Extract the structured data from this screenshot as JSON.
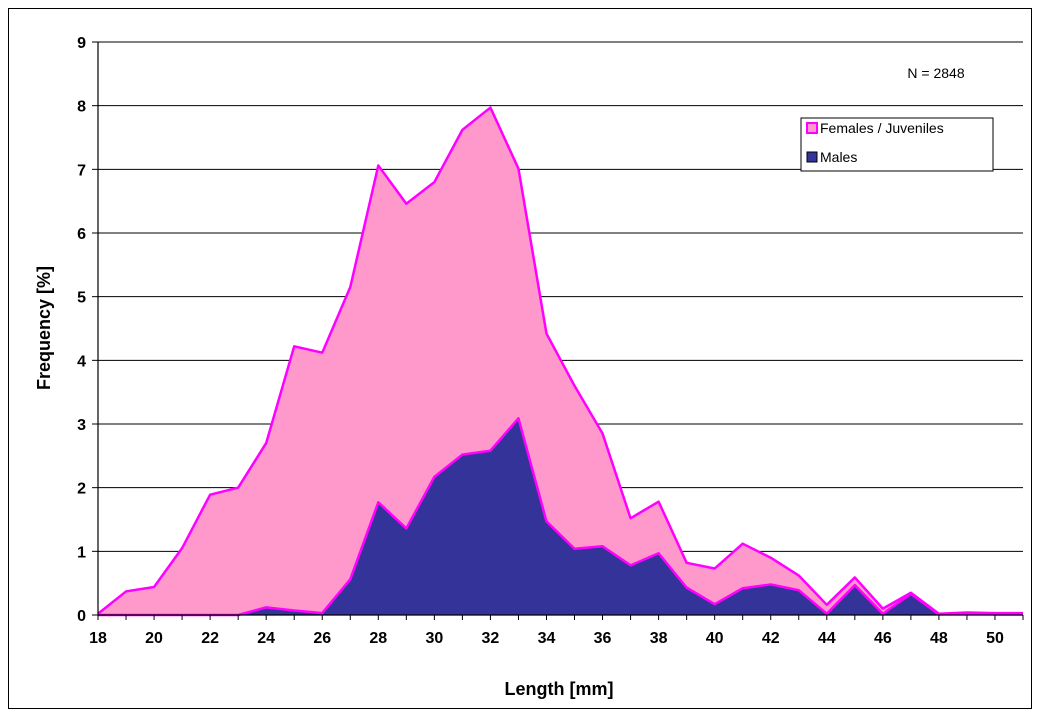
{
  "chart_data": {
    "type": "area",
    "stacked": false,
    "title": "",
    "xlabel": "Length [mm]",
    "ylabel": "Frequency [%]",
    "xlim": [
      18,
      51
    ],
    "ylim": [
      0,
      9
    ],
    "x_ticks": [
      18,
      20,
      22,
      24,
      26,
      28,
      30,
      32,
      34,
      36,
      38,
      40,
      42,
      44,
      46,
      48,
      50
    ],
    "y_ticks": [
      0,
      1,
      2,
      3,
      4,
      5,
      6,
      7,
      8,
      9
    ],
    "grid": "horizontal",
    "legend_position": "top-right",
    "annotation": "N = 2848",
    "x": [
      18,
      19,
      20,
      21,
      22,
      23,
      24,
      25,
      26,
      27,
      28,
      29,
      30,
      31,
      32,
      33,
      34,
      35,
      36,
      37,
      38,
      39,
      40,
      41,
      42,
      43,
      44,
      45,
      46,
      47,
      48,
      49,
      50,
      51
    ],
    "series": [
      {
        "name": "Females / Juveniles",
        "fill": "#ff99cc",
        "stroke": "#ff00ff",
        "values": [
          0.02,
          0.37,
          0.44,
          1.05,
          1.89,
          2.0,
          2.7,
          4.22,
          4.12,
          5.15,
          7.06,
          6.46,
          6.8,
          7.62,
          7.97,
          7.01,
          4.42,
          3.6,
          2.85,
          1.52,
          1.78,
          0.82,
          0.73,
          1.12,
          0.9,
          0.62,
          0.16,
          0.59,
          0.1,
          0.35,
          0.02,
          0.04,
          0.03,
          0.03
        ]
      },
      {
        "name": "Males",
        "fill": "#333399",
        "stroke": "#ff00ff",
        "values": [
          0,
          0,
          0,
          0,
          0,
          0,
          0.12,
          0.07,
          0.03,
          0.56,
          1.77,
          1.36,
          2.17,
          2.52,
          2.58,
          3.09,
          1.47,
          1.04,
          1.08,
          0.78,
          0.97,
          0.43,
          0.17,
          0.42,
          0.48,
          0.39,
          0.02,
          0.47,
          0.02,
          0.33,
          0.01,
          0.02,
          0.01,
          0.01
        ]
      }
    ]
  }
}
